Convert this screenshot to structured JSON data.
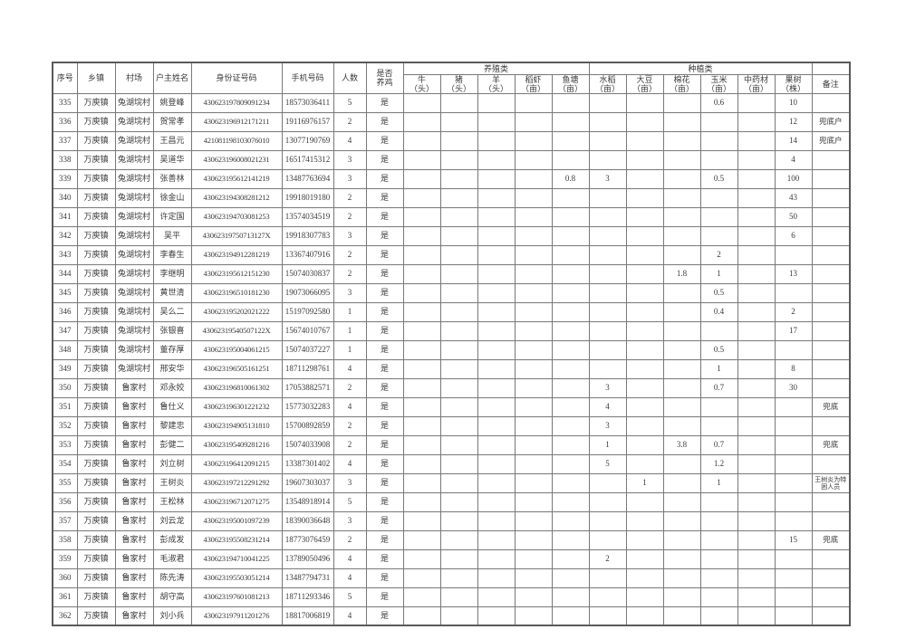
{
  "table": {
    "header": {
      "simple": [
        "序号",
        "乡镇",
        "村场",
        "户主姓名",
        "身份证号码",
        "手机号码",
        "人数",
        "是否\n养鸡"
      ],
      "groups": [
        {
          "label": "养殖类",
          "cols": [
            "牛\n（头）",
            "猪\n（头）",
            "羊\n（头）",
            "稻虾\n（亩）",
            "鱼塘\n（亩）"
          ]
        },
        {
          "label": "种植类",
          "cols": [
            "水稻\n（亩）",
            "大豆\n（亩）",
            "棉花\n（亩）",
            "玉米\n（亩）",
            "中药材\n（亩）",
            "果树\n（株）"
          ]
        }
      ],
      "remark": "备注"
    },
    "rows": [
      [
        "335",
        "万庾镇",
        "兔湖垸村",
        "姚登峰",
        "430623197809091234",
        "18573036411",
        "5",
        "是",
        "",
        "",
        "",
        "",
        "",
        "",
        "",
        "",
        "0.6",
        "",
        "10",
        ""
      ],
      [
        "336",
        "万庾镇",
        "兔湖垸村",
        "贺常孝",
        "430623196912171211",
        "19116976157",
        "2",
        "是",
        "",
        "",
        "",
        "",
        "",
        "",
        "",
        "",
        "",
        "",
        "12",
        "兜底户"
      ],
      [
        "337",
        "万庾镇",
        "兔湖垸村",
        "王昌元",
        "421081198103076010",
        "13077190769",
        "4",
        "是",
        "",
        "",
        "",
        "",
        "",
        "",
        "",
        "",
        "",
        "",
        "14",
        "兜底户"
      ],
      [
        "338",
        "万庾镇",
        "兔湖垸村",
        "吴道华",
        "430623196008021231",
        "16517415312",
        "3",
        "是",
        "",
        "",
        "",
        "",
        "",
        "",
        "",
        "",
        "",
        "",
        "4",
        ""
      ],
      [
        "339",
        "万庾镇",
        "兔湖垸村",
        "张善林",
        "430623195612141219",
        "13487763694",
        "3",
        "是",
        "",
        "",
        "",
        "",
        "0.8",
        "3",
        "",
        "",
        "0.5",
        "",
        "100",
        ""
      ],
      [
        "340",
        "万庾镇",
        "兔湖垸村",
        "徐金山",
        "430623194308281212",
        "19918019180",
        "2",
        "是",
        "",
        "",
        "",
        "",
        "",
        "",
        "",
        "",
        "",
        "",
        "43",
        ""
      ],
      [
        "341",
        "万庾镇",
        "兔湖垸村",
        "许定国",
        "430623194703081253",
        "13574034519",
        "2",
        "是",
        "",
        "",
        "",
        "",
        "",
        "",
        "",
        "",
        "",
        "",
        "50",
        ""
      ],
      [
        "342",
        "万庾镇",
        "兔湖垸村",
        "吴平",
        "43062319750713127X",
        "19918307783",
        "3",
        "是",
        "",
        "",
        "",
        "",
        "",
        "",
        "",
        "",
        "",
        "",
        "6",
        ""
      ],
      [
        "343",
        "万庾镇",
        "兔湖垸村",
        "李春生",
        "430623194912281219",
        "13367407916",
        "2",
        "是",
        "",
        "",
        "",
        "",
        "",
        "",
        "",
        "",
        "2",
        "",
        "",
        ""
      ],
      [
        "344",
        "万庾镇",
        "兔湖垸村",
        "李继明",
        "430623195612151230",
        "15074030837",
        "2",
        "是",
        "",
        "",
        "",
        "",
        "",
        "",
        "",
        "1.8",
        "1",
        "",
        "13",
        ""
      ],
      [
        "345",
        "万庾镇",
        "兔湖垸村",
        "黄世清",
        "430623196510181230",
        "19073066095",
        "3",
        "是",
        "",
        "",
        "",
        "",
        "",
        "",
        "",
        "",
        "0.5",
        "",
        "",
        ""
      ],
      [
        "346",
        "万庾镇",
        "兔湖垸村",
        "吴么二",
        "430623195202021222",
        "15197092580",
        "1",
        "是",
        "",
        "",
        "",
        "",
        "",
        "",
        "",
        "",
        "0.4",
        "",
        "2",
        ""
      ],
      [
        "347",
        "万庾镇",
        "兔湖垸村",
        "张银喜",
        "43062319540507122X",
        "15674010767",
        "1",
        "是",
        "",
        "",
        "",
        "",
        "",
        "",
        "",
        "",
        "",
        "",
        "17",
        ""
      ],
      [
        "348",
        "万庾镇",
        "兔湖垸村",
        "董存厚",
        "430623195004061215",
        "15074037227",
        "1",
        "是",
        "",
        "",
        "",
        "",
        "",
        "",
        "",
        "",
        "0.5",
        "",
        "",
        ""
      ],
      [
        "349",
        "万庾镇",
        "兔湖垸村",
        "邢安华",
        "430623196505161251",
        "18711298761",
        "4",
        "是",
        "",
        "",
        "",
        "",
        "",
        "",
        "",
        "",
        "1",
        "",
        "8",
        ""
      ],
      [
        "350",
        "万庾镇",
        "鲁家村",
        "邓永姣",
        "430623196810061302",
        "17053882571",
        "2",
        "是",
        "",
        "",
        "",
        "",
        "",
        "3",
        "",
        "",
        "0.7",
        "",
        "30",
        ""
      ],
      [
        "351",
        "万庾镇",
        "鲁家村",
        "鲁仕义",
        "430623196301221232",
        "15773032283",
        "4",
        "是",
        "",
        "",
        "",
        "",
        "",
        "4",
        "",
        "",
        "",
        "",
        "",
        "兜底"
      ],
      [
        "352",
        "万庾镇",
        "鲁家村",
        "黎建忠",
        "430623194905131810",
        "15700892859",
        "2",
        "是",
        "",
        "",
        "",
        "",
        "",
        "3",
        "",
        "",
        "",
        "",
        "",
        ""
      ],
      [
        "353",
        "万庾镇",
        "鲁家村",
        "彭健二",
        "430623195409281216",
        "15074033908",
        "2",
        "是",
        "",
        "",
        "",
        "",
        "",
        "1",
        "",
        "3.8",
        "0.7",
        "",
        "",
        "兜底"
      ],
      [
        "354",
        "万庾镇",
        "鲁家村",
        "刘立树",
        "430623196412091215",
        "13387301402",
        "4",
        "是",
        "",
        "",
        "",
        "",
        "",
        "5",
        "",
        "",
        "1.2",
        "",
        "",
        ""
      ],
      [
        "355",
        "万庾镇",
        "鲁家村",
        "王树炎",
        "430623197212291292",
        "19607303037",
        "3",
        "是",
        "",
        "",
        "",
        "",
        "",
        "",
        "1",
        "",
        "1",
        "",
        "",
        "王树炎为特困人员"
      ],
      [
        "356",
        "万庾镇",
        "鲁家村",
        "王松林",
        "430623196712071275",
        "13548918914",
        "5",
        "是",
        "",
        "",
        "",
        "",
        "",
        "",
        "",
        "",
        "",
        "",
        "",
        ""
      ],
      [
        "357",
        "万庾镇",
        "鲁家村",
        "刘云龙",
        "430623195001097239",
        "18390036648",
        "3",
        "是",
        "",
        "",
        "",
        "",
        "",
        "",
        "",
        "",
        "",
        "",
        "",
        ""
      ],
      [
        "358",
        "万庾镇",
        "鲁家村",
        "彭成发",
        "430623195508231214",
        "18773076459",
        "2",
        "是",
        "",
        "",
        "",
        "",
        "",
        "",
        "",
        "",
        "",
        "",
        "15",
        "兜底"
      ],
      [
        "359",
        "万庾镇",
        "鲁家村",
        "毛淑君",
        "430623194710041225",
        "13789050496",
        "4",
        "是",
        "",
        "",
        "",
        "",
        "",
        "2",
        "",
        "",
        "",
        "",
        "",
        ""
      ],
      [
        "360",
        "万庾镇",
        "鲁家村",
        "陈先涛",
        "430623195503051214",
        "13487794731",
        "4",
        "是",
        "",
        "",
        "",
        "",
        "",
        "",
        "",
        "",
        "",
        "",
        "",
        ""
      ],
      [
        "361",
        "万庾镇",
        "鲁家村",
        "胡守高",
        "430623197601081213",
        "18711293346",
        "5",
        "是",
        "",
        "",
        "",
        "",
        "",
        "",
        "",
        "",
        "",
        "",
        "",
        ""
      ],
      [
        "362",
        "万庾镇",
        "鲁家村",
        "刘小兵",
        "430623197911201276",
        "18817006819",
        "4",
        "是",
        "",
        "",
        "",
        "",
        "",
        "",
        "",
        "",
        "",
        "",
        "",
        ""
      ]
    ]
  }
}
